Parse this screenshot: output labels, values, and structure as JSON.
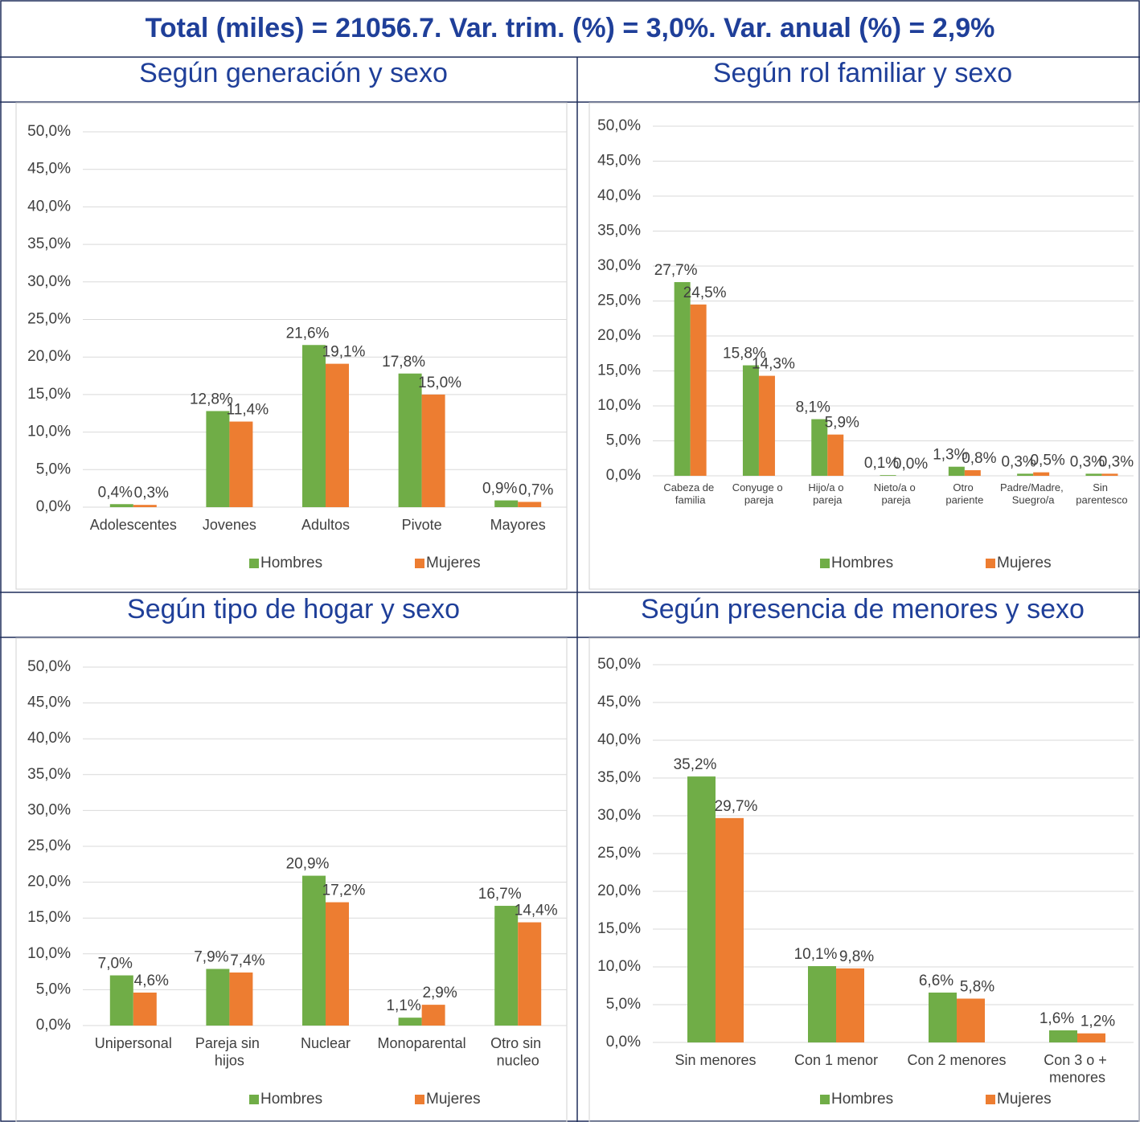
{
  "title": "Total (miles) = 21056.7.  Var. trim. (%) = 3,0%. Var. anual (%) = 2,9%",
  "chart_data": [
    {
      "type": "bar",
      "title": "Según generación y sexo",
      "categories": [
        "Adolescentes",
        "Jovenes",
        "Adultos",
        "Pivote",
        "Mayores"
      ],
      "series": [
        {
          "name": "Hombres",
          "color": "#70ad47",
          "values": [
            0.4,
            12.8,
            21.6,
            17.8,
            0.9
          ],
          "value_labels": [
            "0,4%",
            "12,8%",
            "21,6%",
            "17,8%",
            "0,9%"
          ]
        },
        {
          "name": "Mujeres",
          "color": "#ed7d31",
          "values": [
            0.3,
            11.4,
            19.1,
            15.0,
            0.7
          ],
          "value_labels": [
            "0,3%",
            "11,4%",
            "19,1%",
            "15,0%",
            "0,7%"
          ]
        }
      ],
      "ylim": [
        0,
        50
      ],
      "yticks": [
        {
          "value": 0,
          "label": "0,0%"
        },
        {
          "value": 5,
          "label": "5,0%"
        },
        {
          "value": 10,
          "label": "10,0%"
        },
        {
          "value": 15,
          "label": "15,0%"
        },
        {
          "value": 20,
          "label": "20,0%"
        },
        {
          "value": 25,
          "label": "25,0%"
        },
        {
          "value": 30,
          "label": "30,0%"
        },
        {
          "value": 35,
          "label": "35,0%"
        },
        {
          "value": 40,
          "label": "40,0%"
        },
        {
          "value": 45,
          "label": "45,0%"
        },
        {
          "value": 50,
          "label": "50,0%"
        }
      ],
      "grid": true,
      "legend": "bottom"
    },
    {
      "type": "bar",
      "title": "Según rol familiar y sexo",
      "categories": [
        "Cabeza de familia",
        "Conyuge o pareja",
        "Hijo/a o pareja",
        "Nieto/a o pareja",
        "Otro pariente",
        "Padre/Madre, Suegro/a",
        "Sin parentesco"
      ],
      "series": [
        {
          "name": "Hombres",
          "color": "#70ad47",
          "values": [
            27.7,
            15.8,
            8.1,
            0.1,
            1.3,
            0.3,
            0.3
          ],
          "value_labels": [
            "27,7%",
            "15,8%",
            "8,1%",
            "0,1%",
            "1,3%",
            "0,3%",
            "0,3%"
          ]
        },
        {
          "name": "Mujeres",
          "color": "#ed7d31",
          "values": [
            24.5,
            14.3,
            5.9,
            0.0,
            0.8,
            0.5,
            0.3
          ],
          "value_labels": [
            "24,5%",
            "14,3%",
            "5,9%",
            "0,0%",
            "0,8%",
            "0,5%",
            "0,3%"
          ]
        }
      ],
      "ylim": [
        0,
        50
      ],
      "yticks": [
        {
          "value": 0,
          "label": "0,0%"
        },
        {
          "value": 5,
          "label": "5,0%"
        },
        {
          "value": 10,
          "label": "10,0%"
        },
        {
          "value": 15,
          "label": "15,0%"
        },
        {
          "value": 20,
          "label": "20,0%"
        },
        {
          "value": 25,
          "label": "25,0%"
        },
        {
          "value": 30,
          "label": "30,0%"
        },
        {
          "value": 35,
          "label": "35,0%"
        },
        {
          "value": 40,
          "label": "40,0%"
        },
        {
          "value": 45,
          "label": "45,0%"
        },
        {
          "value": 50,
          "label": "50,0%"
        }
      ],
      "grid": true,
      "legend": "bottom"
    },
    {
      "type": "bar",
      "title": "Según tipo de hogar y sexo",
      "categories": [
        "Unipersonal",
        "Pareja sin hijos",
        "Nuclear",
        "Monoparental",
        "Otro sin nucleo"
      ],
      "series": [
        {
          "name": "Hombres",
          "color": "#70ad47",
          "values": [
            7.0,
            7.9,
            20.9,
            1.1,
            16.7
          ],
          "value_labels": [
            "7,0%",
            "7,9%",
            "20,9%",
            "1,1%",
            "16,7%"
          ]
        },
        {
          "name": "Mujeres",
          "color": "#ed7d31",
          "values": [
            4.6,
            7.4,
            17.2,
            2.9,
            14.4
          ],
          "value_labels": [
            "4,6%",
            "7,4%",
            "17,2%",
            "2,9%",
            "14,4%"
          ]
        }
      ],
      "ylim": [
        0,
        50
      ],
      "yticks": [
        {
          "value": 0,
          "label": "0,0%"
        },
        {
          "value": 5,
          "label": "5,0%"
        },
        {
          "value": 10,
          "label": "10,0%"
        },
        {
          "value": 15,
          "label": "15,0%"
        },
        {
          "value": 20,
          "label": "20,0%"
        },
        {
          "value": 25,
          "label": "25,0%"
        },
        {
          "value": 30,
          "label": "30,0%"
        },
        {
          "value": 35,
          "label": "35,0%"
        },
        {
          "value": 40,
          "label": "40,0%"
        },
        {
          "value": 45,
          "label": "45,0%"
        },
        {
          "value": 50,
          "label": "50,0%"
        }
      ],
      "grid": true,
      "legend": "bottom"
    },
    {
      "type": "bar",
      "title": "Según presencia de menores y sexo",
      "categories": [
        "Sin menores",
        "Con 1 menor",
        "Con 2 menores",
        "Con 3 o + menores"
      ],
      "series": [
        {
          "name": "Hombres",
          "color": "#70ad47",
          "values": [
            35.2,
            10.1,
            6.6,
            1.6
          ],
          "value_labels": [
            "35,2%",
            "10,1%",
            "6,6%",
            "1,6%"
          ]
        },
        {
          "name": "Mujeres",
          "color": "#ed7d31",
          "values": [
            29.7,
            9.8,
            5.8,
            1.2
          ],
          "value_labels": [
            "29,7%",
            "9,8%",
            "5,8%",
            "1,2%"
          ]
        }
      ],
      "ylim": [
        0,
        50
      ],
      "yticks": [
        {
          "value": 0,
          "label": "0,0%"
        },
        {
          "value": 5,
          "label": "5,0%"
        },
        {
          "value": 10,
          "label": "10,0%"
        },
        {
          "value": 15,
          "label": "15,0%"
        },
        {
          "value": 20,
          "label": "20,0%"
        },
        {
          "value": 25,
          "label": "25,0%"
        },
        {
          "value": 30,
          "label": "30,0%"
        },
        {
          "value": 35,
          "label": "35,0%"
        },
        {
          "value": 40,
          "label": "40,0%"
        },
        {
          "value": 45,
          "label": "45,0%"
        },
        {
          "value": 50,
          "label": "50,0%"
        }
      ],
      "grid": true,
      "legend": "bottom"
    }
  ]
}
